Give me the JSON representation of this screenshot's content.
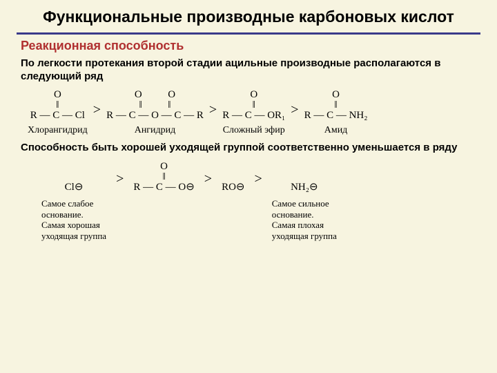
{
  "colors": {
    "background": "#f7f4e0",
    "title_text": "#000000",
    "hr": "#3a3a8a",
    "subtitle": "#b03030",
    "body_text": "#000000",
    "chem_text": "#000000"
  },
  "title": "Функциональные производные карбоновых кислот",
  "subtitle": "Реакционная способность",
  "para1": "По легкости протекания второй стадии ацильные производные располагаются в следующий ряд",
  "reactivity_series": {
    "items": [
      {
        "top": "O",
        "middle": "‖",
        "bottom": "R — C — Cl",
        "label": "Хлорангидрид"
      },
      {
        "top": "O          O",
        "middle": "‖          ‖",
        "bottom": "R — C — O — C — R",
        "label": "Ангидрид"
      },
      {
        "top": "O",
        "middle": "‖",
        "bottom": "R — C — OR₁",
        "label": "Сложный эфир"
      },
      {
        "top": "O",
        "middle": "‖",
        "bottom": "R — C — NH₂",
        "label": "Амид"
      }
    ],
    "comparator": ">"
  },
  "para2": "Способность быть хорошей уходящей группой соответственно уменьшается в ряду",
  "leaving_groups": {
    "items": [
      {
        "formula_top": " ",
        "formula_mid": " ",
        "formula_bottom": "Cl⊖",
        "label": "Самое слабое\nоснование.\nСамая хорошая\nуходящая группа"
      },
      {
        "formula_top": "O",
        "formula_mid": "‖",
        "formula_bottom": "R — C — O⊖",
        "label": ""
      },
      {
        "formula_top": " ",
        "formula_mid": " ",
        "formula_bottom": "RO⊖",
        "label": ""
      },
      {
        "formula_top": " ",
        "formula_mid": " ",
        "formula_bottom": "NH₂⊖",
        "label": "Самое сильное\nоснование.\nСамая плохая\nуходящая группа"
      }
    ],
    "comparator": ">"
  }
}
